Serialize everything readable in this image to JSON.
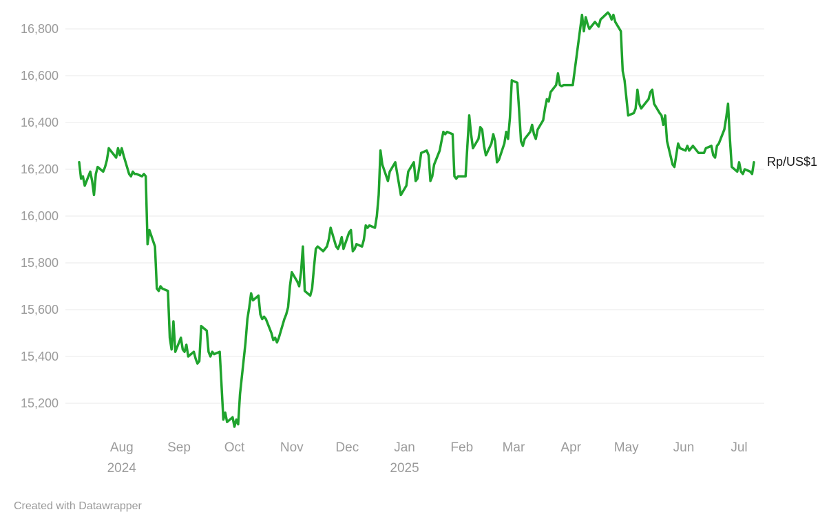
{
  "footer": {
    "credit": "Created with Datawrapper"
  },
  "style": {
    "line_color": "#1fa32d",
    "grid_color": "#e9e9e9",
    "axis_label_color": "#9b9b9b",
    "series_label_color": "#1a1a1a",
    "background": "#ffffff"
  },
  "chart_data": {
    "type": "line",
    "series_label": "Rp/US$1",
    "ylabel": "",
    "xlabel": "",
    "ylim": [
      15050,
      16900
    ],
    "grid": true,
    "x_range": [
      "2024-07-09",
      "2025-07-09"
    ],
    "y_ticks": [
      {
        "value": 16800,
        "label": "16,800"
      },
      {
        "value": 16600,
        "label": "16,600"
      },
      {
        "value": 16400,
        "label": "16,400"
      },
      {
        "value": 16200,
        "label": "16,200"
      },
      {
        "value": 16000,
        "label": "16,000"
      },
      {
        "value": 15800,
        "label": "15,800"
      },
      {
        "value": 15600,
        "label": "15,600"
      },
      {
        "value": 15400,
        "label": "15,400"
      },
      {
        "value": 15200,
        "label": "15,200"
      }
    ],
    "x_ticks": [
      {
        "date": "2024-08-01",
        "label": "Aug",
        "year": "2024"
      },
      {
        "date": "2024-09-01",
        "label": "Sep"
      },
      {
        "date": "2024-10-01",
        "label": "Oct"
      },
      {
        "date": "2024-11-01",
        "label": "Nov"
      },
      {
        "date": "2024-12-01",
        "label": "Dec"
      },
      {
        "date": "2025-01-01",
        "label": "Jan",
        "year": "2025"
      },
      {
        "date": "2025-02-01",
        "label": "Feb"
      },
      {
        "date": "2025-03-01",
        "label": "Mar"
      },
      {
        "date": "2025-04-01",
        "label": "Apr"
      },
      {
        "date": "2025-05-01",
        "label": "May"
      },
      {
        "date": "2025-06-01",
        "label": "Jun"
      },
      {
        "date": "2025-07-01",
        "label": "Jul"
      }
    ],
    "points": [
      [
        "2024-07-09",
        16230
      ],
      [
        "2024-07-10",
        16160
      ],
      [
        "2024-07-11",
        16170
      ],
      [
        "2024-07-12",
        16130
      ],
      [
        "2024-07-15",
        16190
      ],
      [
        "2024-07-16",
        16150
      ],
      [
        "2024-07-17",
        16090
      ],
      [
        "2024-07-18",
        16180
      ],
      [
        "2024-07-19",
        16210
      ],
      [
        "2024-07-22",
        16190
      ],
      [
        "2024-07-23",
        16210
      ],
      [
        "2024-07-24",
        16240
      ],
      [
        "2024-07-25",
        16290
      ],
      [
        "2024-07-26",
        16280
      ],
      [
        "2024-07-29",
        16250
      ],
      [
        "2024-07-30",
        16290
      ],
      [
        "2024-07-31",
        16260
      ],
      [
        "2024-08-01",
        16290
      ],
      [
        "2024-08-02",
        16260
      ],
      [
        "2024-08-05",
        16180
      ],
      [
        "2024-08-06",
        16170
      ],
      [
        "2024-08-07",
        16190
      ],
      [
        "2024-08-08",
        16180
      ],
      [
        "2024-08-09",
        16180
      ],
      [
        "2024-08-12",
        16170
      ],
      [
        "2024-08-13",
        16180
      ],
      [
        "2024-08-14",
        16170
      ],
      [
        "2024-08-15",
        15880
      ],
      [
        "2024-08-16",
        15940
      ],
      [
        "2024-08-19",
        15870
      ],
      [
        "2024-08-20",
        15690
      ],
      [
        "2024-08-21",
        15680
      ],
      [
        "2024-08-22",
        15700
      ],
      [
        "2024-08-23",
        15690
      ],
      [
        "2024-08-26",
        15680
      ],
      [
        "2024-08-27",
        15480
      ],
      [
        "2024-08-28",
        15430
      ],
      [
        "2024-08-29",
        15550
      ],
      [
        "2024-08-30",
        15420
      ],
      [
        "2024-09-02",
        15480
      ],
      [
        "2024-09-03",
        15430
      ],
      [
        "2024-09-04",
        15420
      ],
      [
        "2024-09-05",
        15450
      ],
      [
        "2024-09-06",
        15400
      ],
      [
        "2024-09-09",
        15420
      ],
      [
        "2024-09-10",
        15390
      ],
      [
        "2024-09-11",
        15370
      ],
      [
        "2024-09-12",
        15380
      ],
      [
        "2024-09-13",
        15530
      ],
      [
        "2024-09-16",
        15510
      ],
      [
        "2024-09-17",
        15420
      ],
      [
        "2024-09-18",
        15400
      ],
      [
        "2024-09-19",
        15420
      ],
      [
        "2024-09-20",
        15410
      ],
      [
        "2024-09-23",
        15420
      ],
      [
        "2024-09-24",
        15280
      ],
      [
        "2024-09-25",
        15130
      ],
      [
        "2024-09-26",
        15160
      ],
      [
        "2024-09-27",
        15120
      ],
      [
        "2024-09-30",
        15140
      ],
      [
        "2024-10-01",
        15100
      ],
      [
        "2024-10-02",
        15130
      ],
      [
        "2024-10-03",
        15110
      ],
      [
        "2024-10-04",
        15240
      ],
      [
        "2024-10-07",
        15460
      ],
      [
        "2024-10-08",
        15560
      ],
      [
        "2024-10-09",
        15610
      ],
      [
        "2024-10-10",
        15670
      ],
      [
        "2024-10-11",
        15640
      ],
      [
        "2024-10-14",
        15660
      ],
      [
        "2024-10-15",
        15580
      ],
      [
        "2024-10-16",
        15560
      ],
      [
        "2024-10-17",
        15570
      ],
      [
        "2024-10-18",
        15560
      ],
      [
        "2024-10-21",
        15500
      ],
      [
        "2024-10-22",
        15470
      ],
      [
        "2024-10-23",
        15480
      ],
      [
        "2024-10-24",
        15460
      ],
      [
        "2024-10-25",
        15480
      ],
      [
        "2024-10-28",
        15560
      ],
      [
        "2024-10-29",
        15580
      ],
      [
        "2024-10-30",
        15610
      ],
      [
        "2024-10-31",
        15700
      ],
      [
        "2024-11-01",
        15760
      ],
      [
        "2024-11-04",
        15720
      ],
      [
        "2024-11-05",
        15700
      ],
      [
        "2024-11-06",
        15760
      ],
      [
        "2024-11-07",
        15870
      ],
      [
        "2024-11-08",
        15680
      ],
      [
        "2024-11-11",
        15660
      ],
      [
        "2024-11-12",
        15690
      ],
      [
        "2024-11-13",
        15780
      ],
      [
        "2024-11-14",
        15860
      ],
      [
        "2024-11-15",
        15870
      ],
      [
        "2024-11-18",
        15850
      ],
      [
        "2024-11-19",
        15860
      ],
      [
        "2024-11-20",
        15870
      ],
      [
        "2024-11-21",
        15900
      ],
      [
        "2024-11-22",
        15950
      ],
      [
        "2024-11-25",
        15870
      ],
      [
        "2024-11-26",
        15860
      ],
      [
        "2024-11-27",
        15880
      ],
      [
        "2024-11-28",
        15910
      ],
      [
        "2024-11-29",
        15860
      ],
      [
        "2024-12-02",
        15930
      ],
      [
        "2024-12-03",
        15940
      ],
      [
        "2024-12-04",
        15850
      ],
      [
        "2024-12-05",
        15860
      ],
      [
        "2024-12-06",
        15880
      ],
      [
        "2024-12-09",
        15870
      ],
      [
        "2024-12-10",
        15900
      ],
      [
        "2024-12-11",
        15960
      ],
      [
        "2024-12-12",
        15950
      ],
      [
        "2024-12-13",
        15960
      ],
      [
        "2024-12-16",
        15950
      ],
      [
        "2024-12-17",
        16000
      ],
      [
        "2024-12-18",
        16090
      ],
      [
        "2024-12-19",
        16280
      ],
      [
        "2024-12-20",
        16220
      ],
      [
        "2024-12-23",
        16150
      ],
      [
        "2024-12-24",
        16190
      ],
      [
        "2024-12-27",
        16230
      ],
      [
        "2024-12-30",
        16090
      ],
      [
        "2025-01-02",
        16130
      ],
      [
        "2025-01-03",
        16190
      ],
      [
        "2025-01-06",
        16230
      ],
      [
        "2025-01-07",
        16150
      ],
      [
        "2025-01-08",
        16160
      ],
      [
        "2025-01-09",
        16210
      ],
      [
        "2025-01-10",
        16270
      ],
      [
        "2025-01-13",
        16280
      ],
      [
        "2025-01-14",
        16260
      ],
      [
        "2025-01-15",
        16150
      ],
      [
        "2025-01-16",
        16170
      ],
      [
        "2025-01-17",
        16220
      ],
      [
        "2025-01-20",
        16280
      ],
      [
        "2025-01-21",
        16320
      ],
      [
        "2025-01-22",
        16360
      ],
      [
        "2025-01-23",
        16350
      ],
      [
        "2025-01-24",
        16360
      ],
      [
        "2025-01-27",
        16350
      ],
      [
        "2025-01-28",
        16170
      ],
      [
        "2025-01-29",
        16160
      ],
      [
        "2025-01-30",
        16170
      ],
      [
        "2025-01-31",
        16170
      ],
      [
        "2025-02-03",
        16170
      ],
      [
        "2025-02-04",
        16300
      ],
      [
        "2025-02-05",
        16430
      ],
      [
        "2025-02-06",
        16350
      ],
      [
        "2025-02-07",
        16290
      ],
      [
        "2025-02-10",
        16330
      ],
      [
        "2025-02-11",
        16380
      ],
      [
        "2025-02-12",
        16370
      ],
      [
        "2025-02-13",
        16300
      ],
      [
        "2025-02-14",
        16260
      ],
      [
        "2025-02-17",
        16310
      ],
      [
        "2025-02-18",
        16350
      ],
      [
        "2025-02-19",
        16320
      ],
      [
        "2025-02-20",
        16230
      ],
      [
        "2025-02-21",
        16240
      ],
      [
        "2025-02-24",
        16310
      ],
      [
        "2025-02-25",
        16360
      ],
      [
        "2025-02-26",
        16330
      ],
      [
        "2025-02-27",
        16420
      ],
      [
        "2025-02-28",
        16580
      ],
      [
        "2025-03-03",
        16570
      ],
      [
        "2025-03-04",
        16450
      ],
      [
        "2025-03-05",
        16320
      ],
      [
        "2025-03-06",
        16300
      ],
      [
        "2025-03-07",
        16330
      ],
      [
        "2025-03-10",
        16360
      ],
      [
        "2025-03-11",
        16390
      ],
      [
        "2025-03-12",
        16350
      ],
      [
        "2025-03-13",
        16330
      ],
      [
        "2025-03-14",
        16370
      ],
      [
        "2025-03-17",
        16410
      ],
      [
        "2025-03-18",
        16460
      ],
      [
        "2025-03-19",
        16500
      ],
      [
        "2025-03-20",
        16490
      ],
      [
        "2025-03-21",
        16530
      ],
      [
        "2025-03-24",
        16560
      ],
      [
        "2025-03-25",
        16610
      ],
      [
        "2025-03-26",
        16560
      ],
      [
        "2025-03-27",
        16555
      ],
      [
        "2025-03-28",
        16560
      ],
      [
        "2025-04-01",
        16560
      ],
      [
        "2025-04-02",
        16560
      ],
      [
        "2025-04-07",
        16860
      ],
      [
        "2025-04-08",
        16790
      ],
      [
        "2025-04-09",
        16850
      ],
      [
        "2025-04-10",
        16820
      ],
      [
        "2025-04-11",
        16800
      ],
      [
        "2025-04-14",
        16830
      ],
      [
        "2025-04-15",
        16820
      ],
      [
        "2025-04-16",
        16810
      ],
      [
        "2025-04-17",
        16840
      ],
      [
        "2025-04-21",
        16870
      ],
      [
        "2025-04-22",
        16860
      ],
      [
        "2025-04-23",
        16840
      ],
      [
        "2025-04-24",
        16860
      ],
      [
        "2025-04-25",
        16830
      ],
      [
        "2025-04-28",
        16790
      ],
      [
        "2025-04-29",
        16620
      ],
      [
        "2025-04-30",
        16580
      ],
      [
        "2025-05-02",
        16430
      ],
      [
        "2025-05-05",
        16440
      ],
      [
        "2025-05-06",
        16460
      ],
      [
        "2025-05-07",
        16540
      ],
      [
        "2025-05-08",
        16480
      ],
      [
        "2025-05-09",
        16460
      ],
      [
        "2025-05-12",
        16490
      ],
      [
        "2025-05-13",
        16500
      ],
      [
        "2025-05-14",
        16530
      ],
      [
        "2025-05-15",
        16540
      ],
      [
        "2025-05-16",
        16480
      ],
      [
        "2025-05-19",
        16440
      ],
      [
        "2025-05-20",
        16430
      ],
      [
        "2025-05-21",
        16390
      ],
      [
        "2025-05-22",
        16430
      ],
      [
        "2025-05-23",
        16320
      ],
      [
        "2025-05-26",
        16220
      ],
      [
        "2025-05-27",
        16210
      ],
      [
        "2025-05-28",
        16260
      ],
      [
        "2025-05-29",
        16310
      ],
      [
        "2025-05-30",
        16290
      ],
      [
        "2025-06-02",
        16280
      ],
      [
        "2025-06-03",
        16300
      ],
      [
        "2025-06-04",
        16280
      ],
      [
        "2025-06-05",
        16290
      ],
      [
        "2025-06-06",
        16300
      ],
      [
        "2025-06-09",
        16270
      ],
      [
        "2025-06-10",
        16270
      ],
      [
        "2025-06-11",
        16270
      ],
      [
        "2025-06-12",
        16270
      ],
      [
        "2025-06-13",
        16290
      ],
      [
        "2025-06-16",
        16300
      ],
      [
        "2025-06-17",
        16260
      ],
      [
        "2025-06-18",
        16250
      ],
      [
        "2025-06-19",
        16300
      ],
      [
        "2025-06-20",
        16310
      ],
      [
        "2025-06-23",
        16370
      ],
      [
        "2025-06-24",
        16420
      ],
      [
        "2025-06-25",
        16480
      ],
      [
        "2025-06-26",
        16330
      ],
      [
        "2025-06-27",
        16210
      ],
      [
        "2025-06-30",
        16190
      ],
      [
        "2025-07-01",
        16230
      ],
      [
        "2025-07-02",
        16190
      ],
      [
        "2025-07-03",
        16180
      ],
      [
        "2025-07-04",
        16200
      ],
      [
        "2025-07-07",
        16190
      ],
      [
        "2025-07-08",
        16180
      ],
      [
        "2025-07-09",
        16230
      ]
    ]
  }
}
